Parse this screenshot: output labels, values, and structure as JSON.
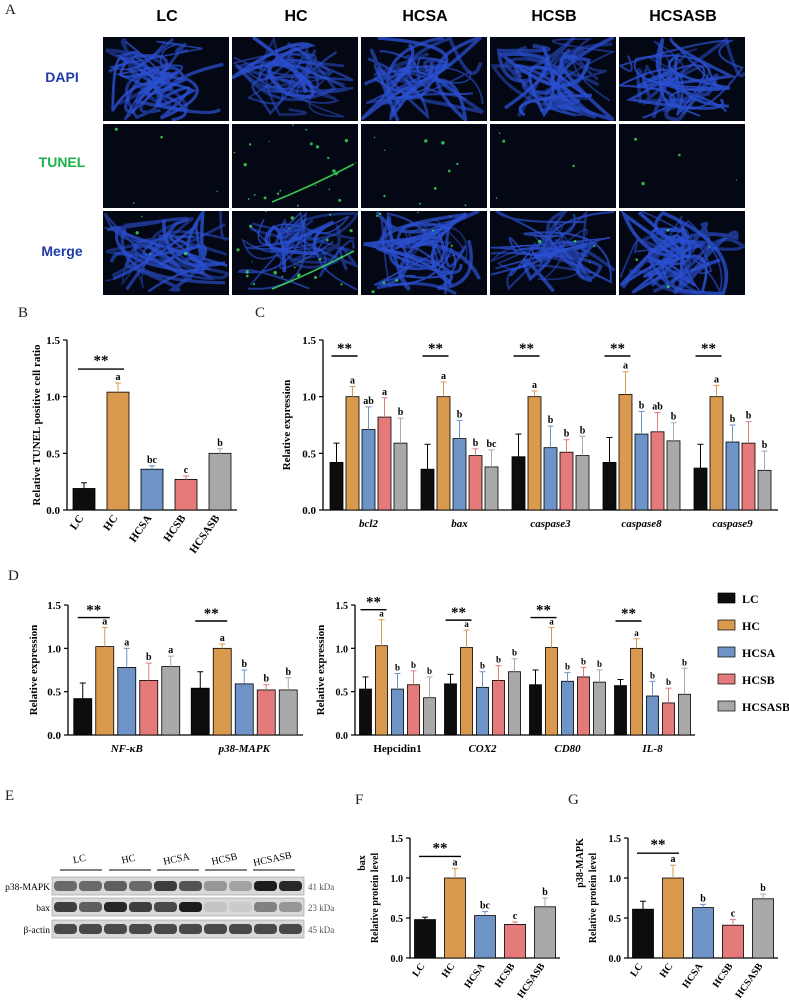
{
  "figure": {
    "panels": {
      "A": "A",
      "B": "B",
      "C": "C",
      "D": "D",
      "E": "E",
      "F": "F",
      "G": "G"
    },
    "colors": {
      "LC": "#0d0d0d",
      "HC": "#d99a4e",
      "HCSA": "#6e93c6",
      "HCSB": "#e47a7a",
      "HCSASB": "#a9a9a9"
    }
  },
  "panelA": {
    "groups": [
      "LC",
      "HC",
      "HCSA",
      "HCSB",
      "HCSASB"
    ],
    "rows": [
      {
        "label": "DAPI",
        "color": "#1f3da8"
      },
      {
        "label": "TUNEL",
        "color": "#19b34a"
      },
      {
        "label": "Merge",
        "color": "#1f3da8"
      }
    ]
  },
  "legend": {
    "items": [
      "LC",
      "HC",
      "HCSA",
      "HCSB",
      "HCSASB"
    ]
  },
  "chart_data": [
    {
      "id": "B",
      "type": "bar",
      "categories": [
        "LC",
        "HC",
        "HCSA",
        "HCSB",
        "HCSASB"
      ],
      "values": [
        0.19,
        1.04,
        0.36,
        0.27,
        0.5
      ],
      "errors": [
        0.05,
        0.08,
        0.03,
        0.03,
        0.04
      ],
      "letters": [
        "",
        "a",
        "bc",
        "c",
        "b"
      ],
      "significance": "**",
      "ylabel": "Relative TUNEL positive cell ratio",
      "ylim": [
        0,
        1.5
      ],
      "yticks": [
        "0.0",
        "0.5",
        "1.0",
        "1.5"
      ]
    },
    {
      "id": "C",
      "type": "bar",
      "categories": [
        "bcl2",
        "bax",
        "caspase3",
        "caspase8",
        "caspase9"
      ],
      "series": [
        {
          "name": "LC",
          "values": [
            0.42,
            0.36,
            0.47,
            0.42,
            0.37
          ],
          "errors": [
            0.17,
            0.22,
            0.2,
            0.22,
            0.21
          ]
        },
        {
          "name": "HC",
          "values": [
            1.0,
            1.0,
            1.0,
            1.02,
            1.0
          ],
          "errors": [
            0.09,
            0.13,
            0.05,
            0.2,
            0.1
          ]
        },
        {
          "name": "HCSA",
          "values": [
            0.71,
            0.63,
            0.55,
            0.67,
            0.6
          ],
          "errors": [
            0.2,
            0.16,
            0.19,
            0.2,
            0.15
          ]
        },
        {
          "name": "HCSB",
          "values": [
            0.82,
            0.48,
            0.51,
            0.69,
            0.59
          ],
          "errors": [
            0.17,
            0.06,
            0.11,
            0.17,
            0.19
          ]
        },
        {
          "name": "HCSASB",
          "values": [
            0.59,
            0.38,
            0.48,
            0.61,
            0.35
          ],
          "errors": [
            0.22,
            0.15,
            0.17,
            0.16,
            0.17
          ]
        }
      ],
      "letters": [
        [
          "",
          "a",
          "ab",
          "a",
          "b"
        ],
        [
          "",
          "a",
          "b",
          "b",
          "bc"
        ],
        [
          "",
          "a",
          "b",
          "b",
          "b"
        ],
        [
          "",
          "a",
          "b",
          "ab",
          "b"
        ],
        [
          "",
          "a",
          "b",
          "b",
          "b"
        ]
      ],
      "significance": "**",
      "ylabel": "Relative expression",
      "ylim": [
        0,
        1.5
      ],
      "yticks": [
        "0.0",
        "0.5",
        "1.0",
        "1.5"
      ]
    },
    {
      "id": "D1",
      "type": "bar",
      "categories": [
        "NF-κB",
        "p38-MAPK"
      ],
      "series": [
        {
          "name": "LC",
          "values": [
            0.42,
            0.54
          ],
          "errors": [
            0.18,
            0.19
          ]
        },
        {
          "name": "HC",
          "values": [
            1.02,
            1.0
          ],
          "errors": [
            0.22,
            0.05
          ]
        },
        {
          "name": "HCSA",
          "values": [
            0.78,
            0.59
          ],
          "errors": [
            0.22,
            0.16
          ]
        },
        {
          "name": "HCSB",
          "values": [
            0.63,
            0.52
          ],
          "errors": [
            0.2,
            0.06
          ]
        },
        {
          "name": "HCSASB",
          "values": [
            0.79,
            0.52
          ],
          "errors": [
            0.12,
            0.14
          ]
        }
      ],
      "letters": [
        [
          "",
          "a",
          "a",
          "b",
          "a"
        ],
        [
          "",
          "a",
          "b",
          "b",
          "b"
        ]
      ],
      "significance": "**",
      "ylabel": "Relative expression",
      "ylim": [
        0,
        1.5
      ],
      "yticks": [
        "0.0",
        "0.5",
        "1.0",
        "1.5"
      ]
    },
    {
      "id": "D2",
      "type": "bar",
      "categories": [
        "Hepcidin1",
        "COX2",
        "CD80",
        "IL-8"
      ],
      "series": [
        {
          "name": "LC",
          "values": [
            0.53,
            0.59,
            0.58,
            0.57
          ],
          "errors": [
            0.14,
            0.11,
            0.17,
            0.07
          ]
        },
        {
          "name": "HC",
          "values": [
            1.03,
            1.01,
            1.01,
            1.0
          ],
          "errors": [
            0.3,
            0.2,
            0.23,
            0.11
          ]
        },
        {
          "name": "HCSA",
          "values": [
            0.53,
            0.55,
            0.62,
            0.45
          ],
          "errors": [
            0.18,
            0.18,
            0.1,
            0.17
          ]
        },
        {
          "name": "HCSB",
          "values": [
            0.58,
            0.63,
            0.67,
            0.37
          ],
          "errors": [
            0.16,
            0.17,
            0.11,
            0.17
          ]
        },
        {
          "name": "HCSASB",
          "values": [
            0.43,
            0.73,
            0.61,
            0.47
          ],
          "errors": [
            0.24,
            0.15,
            0.14,
            0.3
          ]
        }
      ],
      "letters": [
        [
          "",
          "a",
          "b",
          "b",
          "b"
        ],
        [
          "",
          "a",
          "b",
          "b",
          "b"
        ],
        [
          "",
          "a",
          "b",
          "b",
          "b"
        ],
        [
          "",
          "a",
          "b",
          "b",
          "b"
        ]
      ],
      "significance": "**",
      "ylabel": "Relative expression",
      "ylim": [
        0,
        1.5
      ],
      "yticks": [
        "0.0",
        "0.5",
        "1.0",
        "1.5"
      ]
    },
    {
      "id": "F",
      "type": "bar",
      "categories": [
        "LC",
        "HC",
        "HCSA",
        "HCSB",
        "HCSASB"
      ],
      "values": [
        0.48,
        1.0,
        0.53,
        0.42,
        0.64
      ],
      "errors": [
        0.03,
        0.12,
        0.05,
        0.03,
        0.11
      ],
      "letters": [
        "",
        "a",
        "bc",
        "c",
        "b"
      ],
      "significance": "**",
      "ylabel": "Relative protein level",
      "protein": "bax",
      "ylim": [
        0,
        1.5
      ],
      "yticks": [
        "0.0",
        "0.5",
        "1.0",
        "1.5"
      ]
    },
    {
      "id": "G",
      "type": "bar",
      "categories": [
        "LC",
        "HC",
        "HCSA",
        "HCSB",
        "HCSASB"
      ],
      "values": [
        0.61,
        1.0,
        0.63,
        0.41,
        0.74
      ],
      "errors": [
        0.1,
        0.16,
        0.04,
        0.07,
        0.06
      ],
      "letters": [
        "",
        "a",
        "b",
        "c",
        "b"
      ],
      "significance": "**",
      "ylabel": "Relative protein level",
      "protein": "p38-MAPK",
      "ylim": [
        0,
        1.5
      ],
      "yticks": [
        "0.0",
        "0.5",
        "1.0",
        "1.5"
      ]
    }
  ],
  "blot": {
    "groups": [
      "LC",
      "HC",
      "HCSA",
      "HCSB",
      "HCSASB"
    ],
    "rows": [
      {
        "protein": "p38-MAPK",
        "size": "41 kDa",
        "intensity": [
          0.55,
          0.55,
          0.6,
          0.55,
          0.75,
          0.65,
          0.35,
          0.3,
          0.9,
          0.85
        ]
      },
      {
        "protein": "bax",
        "size": "23 kDa",
        "intensity": [
          0.75,
          0.6,
          0.85,
          0.75,
          0.7,
          0.9,
          0.15,
          0.12,
          0.45,
          0.35
        ]
      },
      {
        "protein": "β-actin",
        "size": "45 kDa",
        "intensity": [
          0.7,
          0.7,
          0.7,
          0.7,
          0.7,
          0.7,
          0.7,
          0.7,
          0.7,
          0.7
        ]
      }
    ]
  }
}
